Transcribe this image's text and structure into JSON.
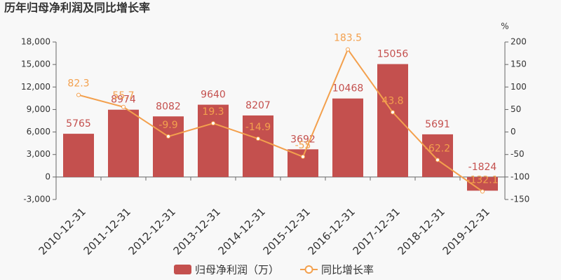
{
  "chart_data": {
    "type": "bar_line",
    "title": "历年归母净利润及同比增长率",
    "y2_label": "%",
    "categories": [
      "2010-12-31",
      "2011-12-31",
      "2012-12-31",
      "2013-12-31",
      "2014-12-31",
      "2015-12-31",
      "2016-12-31",
      "2017-12-31",
      "2018-12-31",
      "2019-12-31"
    ],
    "series": [
      {
        "name": "归母净利润（万）",
        "type": "bar",
        "color": "#c4504e",
        "values": [
          5765,
          8974,
          8082,
          9640,
          8207,
          3692,
          10468,
          15056,
          5691,
          -1824
        ]
      },
      {
        "name": "同比增长率",
        "type": "line",
        "axis": "y2",
        "color": "#f3a04d",
        "values": [
          82.3,
          55.7,
          -9.9,
          19.3,
          -14.9,
          -55,
          183.5,
          43.8,
          -62.2,
          -132.1
        ]
      }
    ],
    "ylim": [
      -3000,
      18000
    ],
    "yticks": [
      {
        "value": -3000,
        "label": "-3,000"
      },
      0,
      {
        "value": 3000,
        "label": "3,000"
      },
      {
        "value": 6000,
        "label": "6,000"
      },
      {
        "value": 9000,
        "label": "9,000"
      },
      {
        "value": 12000,
        "label": "12,000"
      },
      {
        "value": 15000,
        "label": "15,000"
      },
      {
        "value": 18000,
        "label": "18,000"
      }
    ],
    "y2lim": [
      -150,
      200
    ],
    "y2ticks": [
      -150,
      -100,
      -50,
      0,
      50,
      100,
      150,
      200
    ],
    "grid": false,
    "legend": "bottom"
  }
}
